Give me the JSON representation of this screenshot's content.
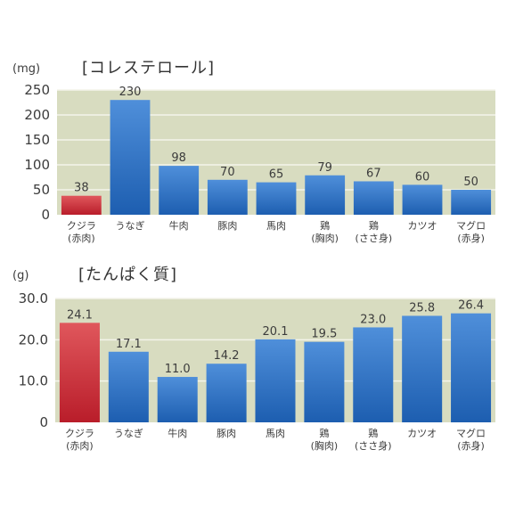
{
  "chart_data": [
    {
      "type": "bar",
      "title": "[コレステロール]",
      "unit": "(mg)",
      "ylim": [
        0,
        250
      ],
      "yticks": [
        "0",
        "50",
        "100",
        "150",
        "200",
        "250"
      ],
      "grid": true,
      "categories": [
        [
          "クジラ",
          "(赤肉)"
        ],
        [
          "うなぎ"
        ],
        [
          "牛肉"
        ],
        [
          "豚肉"
        ],
        [
          "馬肉"
        ],
        [
          "鶏",
          "(胸肉)"
        ],
        [
          "鶏",
          "(ささ身)"
        ],
        [
          "カツオ"
        ],
        [
          "マグロ",
          "(赤身)"
        ]
      ],
      "values": [
        38,
        230,
        98,
        70,
        65,
        79,
        67,
        60,
        50
      ],
      "value_labels": [
        "38",
        "230",
        "98",
        "70",
        "65",
        "79",
        "67",
        "60",
        "50"
      ]
    },
    {
      "type": "bar",
      "title": "[たんぱく質]",
      "unit": "(g)",
      "ylim": [
        0,
        30
      ],
      "yticks": [
        "0",
        "10.0",
        "20.0",
        "30.0"
      ],
      "grid": true,
      "categories": [
        [
          "クジラ",
          "(赤肉)"
        ],
        [
          "うなぎ"
        ],
        [
          "牛肉"
        ],
        [
          "豚肉"
        ],
        [
          "馬肉"
        ],
        [
          "鶏",
          "(胸肉)"
        ],
        [
          "鶏",
          "(ささ身)"
        ],
        [
          "カツオ"
        ],
        [
          "マグロ",
          "(赤身)"
        ]
      ],
      "values": [
        24.1,
        17.1,
        11.0,
        14.2,
        20.1,
        19.5,
        23.0,
        25.8,
        26.4
      ],
      "value_labels": [
        "24.1",
        "17.1",
        "11.0",
        "14.2",
        "20.1",
        "19.5",
        "23.0",
        "25.8",
        "26.4"
      ]
    }
  ],
  "colors": {
    "plot_bg": "#d8dcc0",
    "grid": "#f4f4ea",
    "highlight_top": "#e0575c",
    "highlight_bottom": "#b91d2a",
    "bar_top": "#4f8fda",
    "bar_bottom": "#1d5eb0"
  }
}
